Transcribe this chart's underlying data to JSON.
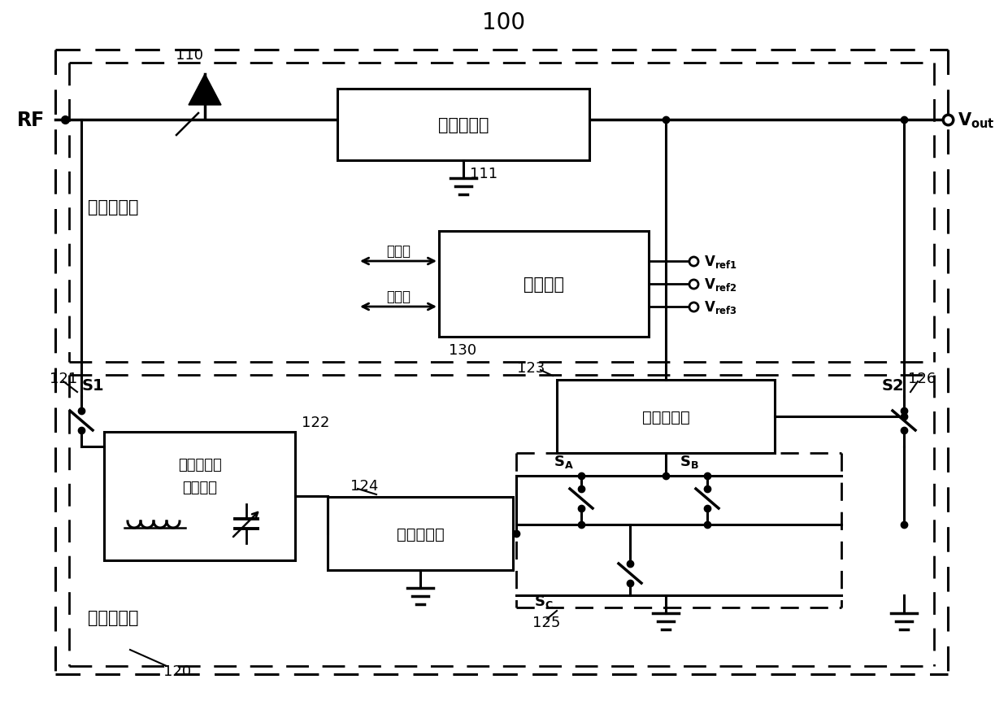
{
  "bg": "#ffffff",
  "lc": "#000000",
  "title": "100",
  "rf_label": "RF",
  "label_110": "110",
  "label_120": "120",
  "label_121": "121",
  "label_122": "122",
  "label_123": "123",
  "label_124": "124",
  "label_125": "125",
  "label_126": "126",
  "label_130": "130",
  "label_111": "111",
  "rect1_text": "第一整流器",
  "rect2_text": "控制电路",
  "rect3_line1": "可调谐阻抗",
  "rect3_line2": "匹配网络",
  "rect4_text": "第二整流器",
  "rect5_text": "第三整流器",
  "low_branch": "低功率支路",
  "high_branch": "高功率支路",
  "ctrl_word": "控制字",
  "s1": "S1",
  "s2": "S2",
  "sa": "S",
  "sb": "S",
  "sc": "S"
}
